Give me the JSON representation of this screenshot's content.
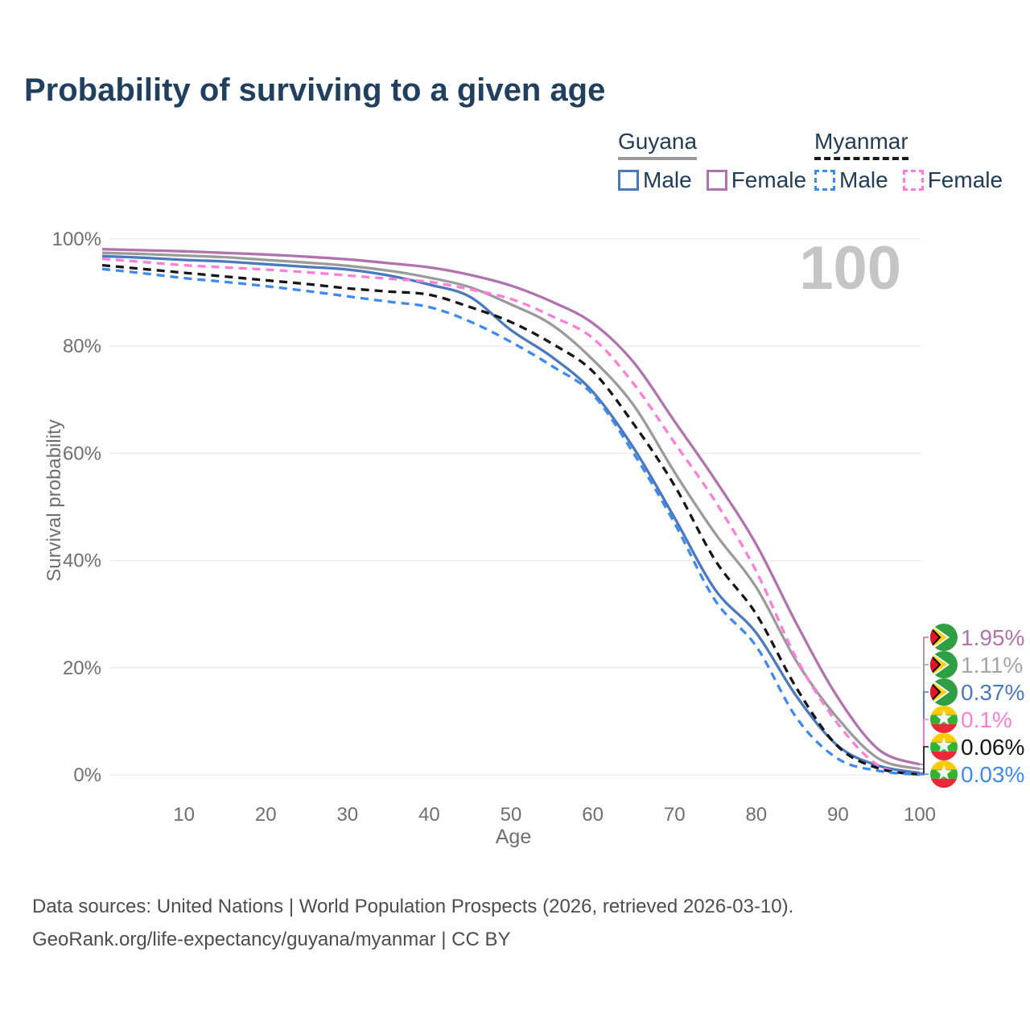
{
  "title": "Probability of surviving to a given age",
  "watermark": "100",
  "theme": {
    "background": "#ffffff",
    "title_color": "#21405f",
    "legend_text_color": "#223c58",
    "grid_color": "#ebebeb",
    "tick_color": "#6f6f6f",
    "watermark_color": "#c5c5c5",
    "footer_color": "#4d4d4d"
  },
  "legend": {
    "groups": [
      {
        "name": "Guyana",
        "line_style": "solid",
        "underline_color": "#9b9b9b",
        "items": [
          {
            "label": "Male",
            "color": "#4b79bd",
            "dashed": false
          },
          {
            "label": "Female",
            "color": "#b173ae",
            "dashed": false
          }
        ]
      },
      {
        "name": "Myanmar",
        "line_style": "dashed",
        "underline_color": "#1a1a1a",
        "items": [
          {
            "label": "Male",
            "color": "#3f8af0",
            "dashed": true
          },
          {
            "label": "Female",
            "color": "#fe7ed8",
            "dashed": true
          }
        ]
      }
    ]
  },
  "chart_data": {
    "type": "line",
    "title": "Probability of surviving to a given age",
    "xlabel": "Age",
    "ylabel": "Survival probability",
    "xlim": [
      0,
      100
    ],
    "ylim": [
      0,
      100
    ],
    "grid": "horizontal",
    "x_ticks": [
      10,
      20,
      30,
      40,
      50,
      60,
      70,
      80,
      90,
      100
    ],
    "y_ticks": [
      {
        "value": 0,
        "label": "0%"
      },
      {
        "value": 20,
        "label": "20%"
      },
      {
        "value": 40,
        "label": "40%"
      },
      {
        "value": 60,
        "label": "60%"
      },
      {
        "value": 80,
        "label": "80%"
      },
      {
        "value": 100,
        "label": "100%"
      }
    ],
    "x": [
      0,
      5,
      10,
      15,
      20,
      25,
      30,
      35,
      40,
      45,
      50,
      55,
      60,
      65,
      70,
      75,
      80,
      85,
      90,
      95,
      100
    ],
    "series": [
      {
        "id": "guyana-female",
        "country": "Guyana",
        "sex": "Female",
        "color": "#b173ae",
        "dashed": false,
        "values": [
          98.1,
          97.9,
          97.7,
          97.4,
          97.1,
          96.7,
          96.2,
          95.5,
          94.7,
          93.3,
          91.3,
          88.3,
          84.3,
          77.0,
          66.0,
          55.0,
          43.0,
          28.0,
          14.4,
          4.7,
          1.95
        ]
      },
      {
        "id": "guyana-all",
        "country": "Guyana",
        "sex": "Both",
        "color": "#9b9b9b",
        "dashed": false,
        "values": [
          97.4,
          97.2,
          96.9,
          96.6,
          96.1,
          95.6,
          95.0,
          94.1,
          92.8,
          91.0,
          87.8,
          84.0,
          77.5,
          69.0,
          56.5,
          45.0,
          35.0,
          21.0,
          10.5,
          3.0,
          1.11
        ]
      },
      {
        "id": "guyana-male",
        "country": "Guyana",
        "sex": "Male",
        "color": "#4b79bd",
        "dashed": false,
        "values": [
          96.8,
          96.5,
          96.1,
          95.8,
          95.3,
          94.8,
          94.3,
          93.2,
          91.5,
          89.2,
          83.0,
          78.0,
          71.5,
          61.0,
          48.0,
          34.5,
          26.5,
          14.5,
          5.4,
          1.7,
          0.37
        ]
      },
      {
        "id": "myanmar-female",
        "country": "Myanmar",
        "sex": "Female",
        "color": "#fe7ed8",
        "dashed": true,
        "values": [
          96.3,
          95.7,
          95.1,
          94.7,
          94.3,
          93.8,
          93.2,
          92.6,
          92.0,
          90.6,
          88.8,
          85.6,
          81.5,
          73.0,
          62.0,
          51.0,
          38.0,
          21.5,
          9.5,
          1.7,
          0.1
        ]
      },
      {
        "id": "myanmar-all",
        "country": "Myanmar",
        "sex": "Both",
        "color": "#161616",
        "dashed": true,
        "values": [
          95.1,
          94.4,
          93.7,
          93.0,
          92.3,
          91.6,
          90.8,
          90.2,
          89.6,
          87.3,
          84.5,
          80.5,
          75.3,
          65.5,
          54.0,
          40.0,
          30.0,
          16.0,
          5.3,
          1.2,
          0.06
        ]
      },
      {
        "id": "myanmar-male",
        "country": "Myanmar",
        "sex": "Male",
        "color": "#3f8af0",
        "dashed": true,
        "values": [
          94.4,
          93.6,
          92.7,
          92.0,
          91.2,
          90.3,
          89.3,
          88.3,
          87.3,
          84.6,
          80.8,
          76.3,
          71.0,
          60.0,
          47.0,
          32.5,
          24.0,
          10.5,
          3.0,
          0.75,
          0.03
        ]
      }
    ],
    "end_labels": [
      {
        "series": "guyana-female",
        "flag": "guyana",
        "text": "1.95%",
        "text_color": "#b173ae",
        "line_color": "#b173ae",
        "value": 1.95
      },
      {
        "series": "guyana-all",
        "flag": "guyana",
        "text": "1.11%",
        "text_color": "#a6a6a6",
        "line_color": "#9b9b9b",
        "value": 1.11
      },
      {
        "series": "guyana-male",
        "flag": "guyana",
        "text": "0.37%",
        "text_color": "#4b79bd",
        "line_color": "#4b79bd",
        "value": 0.37
      },
      {
        "series": "myanmar-female",
        "flag": "myanmar",
        "text": "0.1%",
        "text_color": "#fe7ed8",
        "line_color": "#fe7ed8",
        "value": 0.1
      },
      {
        "series": "myanmar-all",
        "flag": "myanmar",
        "text": "0.06%",
        "text_color": "#161616",
        "line_color": "#161616",
        "value": 0.06
      },
      {
        "series": "myanmar-male",
        "flag": "myanmar",
        "text": "0.03%",
        "text_color": "#3f8af0",
        "line_color": "#3f8af0",
        "value": 0.03
      }
    ]
  },
  "footer": {
    "line1": "Data sources: United Nations | World Population Prospects (2026, retrieved 2026-03-10).",
    "line2": "GeoRank.org/life-expectancy/guyana/myanmar | CC BY"
  }
}
